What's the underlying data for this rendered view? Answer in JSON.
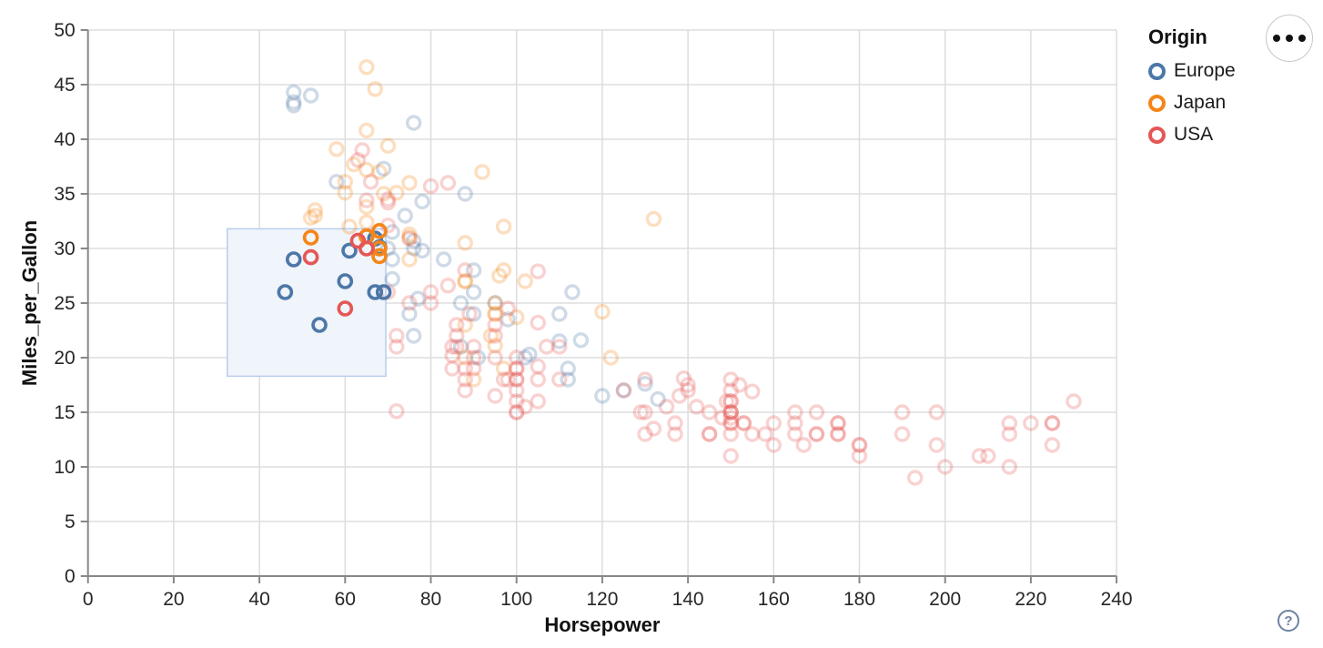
{
  "ui": {
    "menu_button": "more-options",
    "help_label": "?"
  },
  "chart_data": {
    "type": "scatter",
    "title": "",
    "xlabel": "Horsepower",
    "ylabel": "Miles_per_Gallon",
    "xlim": [
      0,
      240
    ],
    "ylim": [
      0,
      50
    ],
    "x_ticks": [
      0,
      20,
      40,
      60,
      80,
      100,
      120,
      140,
      160,
      180,
      200,
      220,
      240
    ],
    "y_ticks": [
      0,
      5,
      10,
      15,
      20,
      25,
      30,
      35,
      40,
      45,
      50
    ],
    "grid": true,
    "grid_color": "#dddddd",
    "axis_color": "#888888",
    "tick_label_color": "#262626",
    "unselected_opacity": 0.27,
    "brush": {
      "hp_range": [
        32.5,
        69.5
      ],
      "mpg_range": [
        18.3,
        31.8
      ],
      "fill": "#f0f4fb",
      "stroke": "#b9cdee"
    },
    "legend": {
      "title": "Origin",
      "position": "top-right",
      "entries": [
        {
          "label": "Europe",
          "color": "#4c78a8"
        },
        {
          "label": "Japan",
          "color": "#f58518"
        },
        {
          "label": "USA",
          "color": "#e45756"
        }
      ]
    },
    "series": [
      {
        "name": "Europe",
        "color": "#4c78a8",
        "selected": [
          [
            48,
            29
          ],
          [
            46,
            26
          ],
          [
            54,
            23
          ],
          [
            60,
            27
          ],
          [
            61,
            29.8
          ],
          [
            67,
            30.9
          ],
          [
            68,
            30.1
          ],
          [
            67,
            26
          ],
          [
            69,
            26
          ]
        ],
        "unselected": [
          [
            48,
            44.3
          ],
          [
            48,
            43.4
          ],
          [
            52,
            44
          ],
          [
            48,
            43.1
          ],
          [
            76,
            41.5
          ],
          [
            69,
            37.3
          ],
          [
            58,
            36.1
          ],
          [
            88,
            35
          ],
          [
            78,
            34.3
          ],
          [
            74,
            33
          ],
          [
            71,
            31.5
          ],
          [
            76,
            30.7
          ],
          [
            70,
            30
          ],
          [
            76,
            30
          ],
          [
            78,
            29.8
          ],
          [
            71,
            29
          ],
          [
            83,
            29
          ],
          [
            90,
            28
          ],
          [
            71,
            27.2
          ],
          [
            113,
            26
          ],
          [
            90,
            26
          ],
          [
            77,
            25.4
          ],
          [
            95,
            25
          ],
          [
            87,
            25
          ],
          [
            90,
            24
          ],
          [
            110,
            24
          ],
          [
            75,
            24
          ],
          [
            98,
            23.5
          ],
          [
            76,
            22
          ],
          [
            115,
            21.6
          ],
          [
            110,
            21.5
          ],
          [
            87,
            21
          ],
          [
            103,
            20.3
          ],
          [
            102,
            20
          ],
          [
            91,
            20
          ],
          [
            112,
            19
          ],
          [
            112,
            18
          ],
          [
            130,
            17.6
          ],
          [
            125,
            17
          ],
          [
            120,
            16.5
          ],
          [
            133,
            16.2
          ]
        ]
      },
      {
        "name": "Japan",
        "color": "#f58518",
        "selected": [
          [
            52,
            31
          ],
          [
            68,
            31.6
          ],
          [
            65,
            31.1
          ],
          [
            68,
            30
          ],
          [
            68,
            29.3
          ]
        ],
        "unselected": [
          [
            65,
            46.6
          ],
          [
            67,
            44.6
          ],
          [
            65,
            40.8
          ],
          [
            70,
            39.4
          ],
          [
            58,
            39.1
          ],
          [
            62,
            37.7
          ],
          [
            65,
            37.2
          ],
          [
            68,
            37
          ],
          [
            92,
            37
          ],
          [
            60,
            36.1
          ],
          [
            75,
            36
          ],
          [
            60,
            35.1
          ],
          [
            69,
            35
          ],
          [
            72,
            35.1
          ],
          [
            65,
            33.8
          ],
          [
            53,
            33
          ],
          [
            53,
            33.5
          ],
          [
            52,
            32.8
          ],
          [
            132,
            32.7
          ],
          [
            65,
            32.4
          ],
          [
            61,
            32
          ],
          [
            97,
            32
          ],
          [
            75,
            31.3
          ],
          [
            75,
            31
          ],
          [
            88,
            30.5
          ],
          [
            75,
            29
          ],
          [
            97,
            28
          ],
          [
            88,
            27
          ],
          [
            88,
            27
          ],
          [
            102,
            27
          ],
          [
            96,
            27.5
          ],
          [
            95,
            25
          ],
          [
            95,
            24
          ],
          [
            95,
            24
          ],
          [
            120,
            24.2
          ],
          [
            100,
            23.7
          ],
          [
            88,
            23
          ],
          [
            94,
            22
          ],
          [
            95,
            21.1
          ],
          [
            122,
            20
          ],
          [
            97,
            19
          ],
          [
            90,
            18
          ],
          [
            88,
            20
          ]
        ]
      },
      {
        "name": "USA",
        "color": "#e45756",
        "selected": [
          [
            52,
            29.2
          ],
          [
            63,
            30.7
          ],
          [
            65,
            30
          ],
          [
            60,
            24.5
          ]
        ],
        "unselected": [
          [
            64,
            39
          ],
          [
            63,
            38.1
          ],
          [
            66,
            36.1
          ],
          [
            84,
            36
          ],
          [
            80,
            35.7
          ],
          [
            70,
            34.5
          ],
          [
            70,
            34.2
          ],
          [
            65,
            34.4
          ],
          [
            70,
            32.1
          ],
          [
            75,
            30.9
          ],
          [
            88,
            28
          ],
          [
            105,
            27.9
          ],
          [
            84,
            26.6
          ],
          [
            70,
            26
          ],
          [
            80,
            26
          ],
          [
            75,
            25
          ],
          [
            80,
            25
          ],
          [
            89,
            24
          ],
          [
            95,
            23
          ],
          [
            86,
            23
          ],
          [
            98,
            24.5
          ],
          [
            105,
            23.2
          ],
          [
            95,
            22
          ],
          [
            72,
            22
          ],
          [
            86,
            22
          ],
          [
            90,
            21
          ],
          [
            85,
            21
          ],
          [
            86,
            21
          ],
          [
            107,
            21
          ],
          [
            72,
            21
          ],
          [
            85,
            20.2
          ],
          [
            95,
            20
          ],
          [
            90,
            20
          ],
          [
            100,
            20
          ],
          [
            110,
            21
          ],
          [
            100,
            19
          ],
          [
            100,
            19
          ],
          [
            88,
            19
          ],
          [
            85,
            19
          ],
          [
            90,
            19
          ],
          [
            105,
            19.2
          ],
          [
            97,
            18
          ],
          [
            100,
            18
          ],
          [
            100,
            18
          ],
          [
            88,
            18
          ],
          [
            105,
            18
          ],
          [
            98,
            18
          ],
          [
            88,
            17
          ],
          [
            100,
            17
          ],
          [
            110,
            18
          ],
          [
            100,
            16
          ],
          [
            105,
            16
          ],
          [
            100,
            15
          ],
          [
            100,
            15
          ],
          [
            102,
            15.5
          ],
          [
            95,
            16.5
          ],
          [
            72,
            15.1
          ],
          [
            130,
            18
          ],
          [
            139,
            18.1
          ],
          [
            140,
            17.5
          ],
          [
            150,
            18
          ],
          [
            150,
            17
          ],
          [
            152,
            17.5
          ],
          [
            140,
            17
          ],
          [
            155,
            16.9
          ],
          [
            165,
            15
          ],
          [
            150,
            16
          ],
          [
            150,
            16
          ],
          [
            230,
            16
          ],
          [
            145,
            15
          ],
          [
            142,
            15.5
          ],
          [
            135,
            15.5
          ],
          [
            149,
            16
          ],
          [
            138,
            16.5
          ],
          [
            125,
            17
          ],
          [
            129,
            15
          ],
          [
            130,
            15
          ],
          [
            198,
            15
          ],
          [
            190,
            15
          ],
          [
            170,
            15
          ],
          [
            150,
            15
          ],
          [
            150,
            15
          ],
          [
            150,
            15
          ],
          [
            150,
            14.5
          ],
          [
            148,
            14.5
          ],
          [
            220,
            14
          ],
          [
            215,
            14
          ],
          [
            225,
            14
          ],
          [
            225,
            14
          ],
          [
            165,
            14
          ],
          [
            175,
            14
          ],
          [
            153,
            14
          ],
          [
            150,
            14
          ],
          [
            175,
            14
          ],
          [
            153,
            14
          ],
          [
            150,
            14
          ],
          [
            137,
            14
          ],
          [
            160,
            14
          ],
          [
            145,
            13
          ],
          [
            137,
            13
          ],
          [
            145,
            13
          ],
          [
            155,
            13
          ],
          [
            150,
            13
          ],
          [
            158,
            13
          ],
          [
            165,
            13
          ],
          [
            170,
            13
          ],
          [
            175,
            13
          ],
          [
            170,
            13
          ],
          [
            175,
            13
          ],
          [
            190,
            13
          ],
          [
            215,
            13
          ],
          [
            130,
            13
          ],
          [
            132,
            13.5
          ],
          [
            180,
            12
          ],
          [
            160,
            12
          ],
          [
            198,
            12
          ],
          [
            225,
            12
          ],
          [
            167,
            12
          ],
          [
            180,
            12
          ],
          [
            150,
            11
          ],
          [
            208,
            11
          ],
          [
            180,
            11
          ],
          [
            210,
            11
          ],
          [
            193,
            9
          ],
          [
            215,
            10
          ],
          [
            200,
            10
          ]
        ]
      }
    ]
  }
}
